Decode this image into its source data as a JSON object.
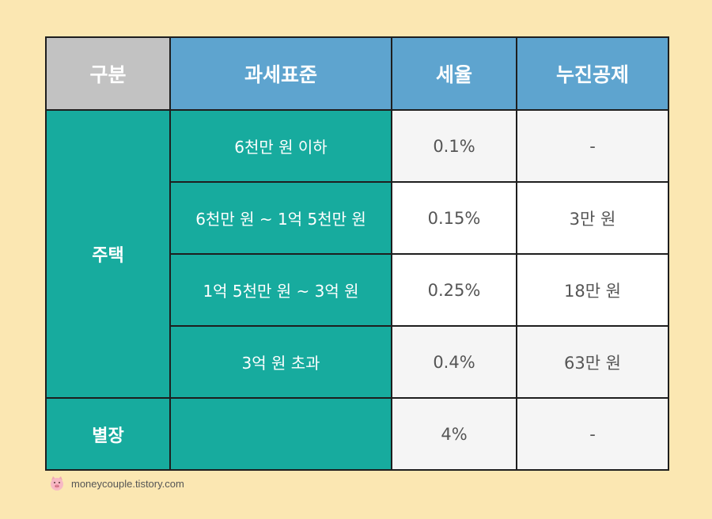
{
  "table": {
    "headers": [
      "구분",
      "과세표준",
      "세율",
      "누진공제"
    ],
    "category_house": "주택",
    "category_villa": "별장",
    "rows": [
      {
        "base": "6천만 원 이하",
        "rate": "0.1%",
        "deduction": "-"
      },
      {
        "base": "6천만 원 ~ 1억 5천만 원",
        "rate": "0.15%",
        "deduction": "3만 원"
      },
      {
        "base": "1억 5천만 원 ~ 3억 원",
        "rate": "0.25%",
        "deduction": "18만 원"
      },
      {
        "base": "3억 원 초과",
        "rate": "0.4%",
        "deduction": "63만 원"
      },
      {
        "base": "",
        "rate": "4%",
        "deduction": "-"
      }
    ]
  },
  "footer": {
    "icon": "pig-icon",
    "text": "moneycouple.tistory.com"
  }
}
